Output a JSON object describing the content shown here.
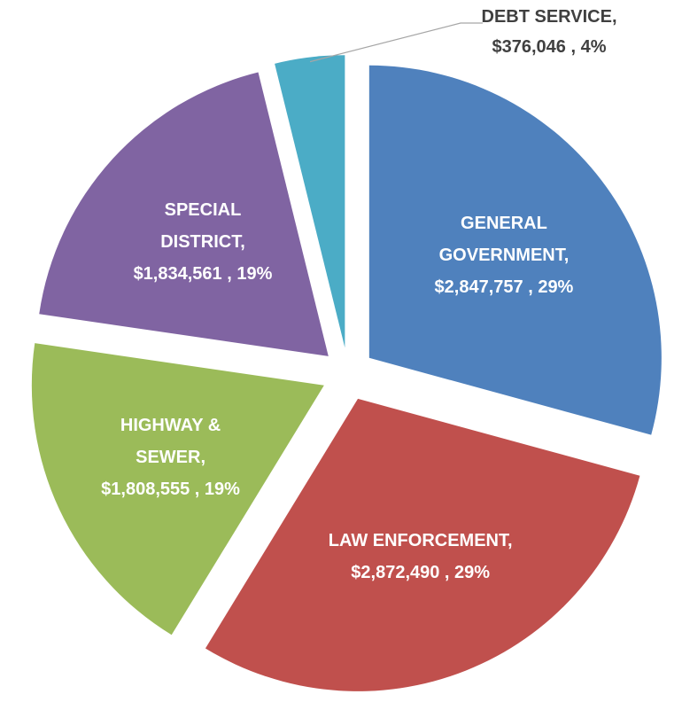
{
  "chart_data": {
    "type": "pie",
    "categories": [
      "GENERAL GOVERNMENT,",
      "LAW ENFORCEMENT,",
      "HIGHWAY & SEWER,",
      "SPECIAL DISTRICT,",
      "DEBT SERVICE,"
    ],
    "values": [
      2847757,
      2872490,
      1808555,
      1834561,
      376046
    ],
    "value_labels": [
      "$2,847,757 , 29%",
      "$2,872,490 , 29%",
      "$1,808,555 , 19%",
      "$1,834,561 , 19%",
      "$376,046 , 4%"
    ],
    "colors": [
      "#4f81bd",
      "#c0504d",
      "#9bbb59",
      "#8064a2",
      "#4bacc6"
    ]
  }
}
